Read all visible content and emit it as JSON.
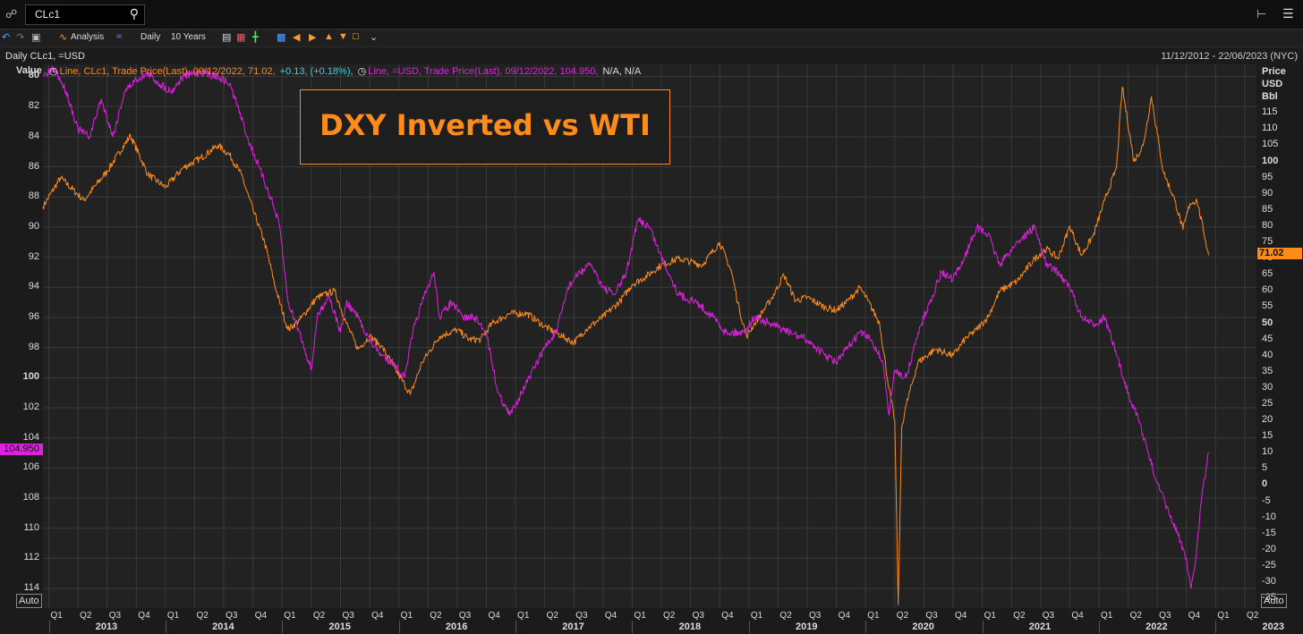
{
  "topbar": {
    "ric_value": "CLc1"
  },
  "toolbar": {
    "analysis_label": "Analysis",
    "interval_label": "Daily",
    "range_label": "10 Years"
  },
  "infobar": {
    "chart_name": "Daily CLc1, =USD",
    "date_range": "11/12/2012 - 22/06/2023 (NYC)"
  },
  "legend": {
    "wti_text": "Line, CLc1, Trade Price(Last), 09/12/2022, 71.02,",
    "wti_change": "+0.13, (+0.18%),",
    "dxy_text": "Line, =USD, Trade Price(Last), 09/12/2022, 104.950,",
    "dxy_na": "N/A, N/A"
  },
  "title": "DXY Inverted vs WTI",
  "axes": {
    "left_title": "Value",
    "right_title": [
      "Price",
      "USD",
      "Bbl"
    ],
    "auto_label": "Auto",
    "dxy_last_tag": "104.950",
    "wti_last_tag": "71.02"
  },
  "colors": {
    "wti": "#ff8c1a",
    "dxy": "#e020e0",
    "grid": "#3a3a3a"
  },
  "chart_data": {
    "type": "line",
    "title": "DXY Inverted vs WTI",
    "x_quarters": [
      "Q1",
      "Q2",
      "Q3",
      "Q4",
      "Q1",
      "Q2",
      "Q3",
      "Q4",
      "Q1",
      "Q2",
      "Q3",
      "Q4",
      "Q1",
      "Q2",
      "Q3",
      "Q4",
      "Q1",
      "Q2",
      "Q3",
      "Q4",
      "Q1",
      "Q2",
      "Q3",
      "Q4",
      "Q1",
      "Q2",
      "Q3",
      "Q4",
      "Q1",
      "Q2",
      "Q3",
      "Q4",
      "Q1",
      "Q2",
      "Q3",
      "Q4",
      "Q1",
      "Q2",
      "Q3",
      "Q4",
      "Q1",
      "Q2"
    ],
    "x_years": [
      "2013",
      "2014",
      "2015",
      "2016",
      "2017",
      "2018",
      "2019",
      "2020",
      "2021",
      "2022",
      "2023"
    ],
    "left_axis": {
      "label": "Value",
      "inverted": true,
      "ylim": [
        79.2,
        115.3
      ],
      "ticks": [
        80,
        82,
        84,
        86,
        88,
        90,
        92,
        94,
        96,
        98,
        100,
        102,
        104,
        106,
        108,
        110,
        112,
        114
      ]
    },
    "right_axis": {
      "label": "Price USD Bbl",
      "ylim": [
        -38,
        130
      ],
      "ticks": [
        115,
        110,
        105,
        100,
        95,
        90,
        85,
        80,
        75,
        70,
        65,
        60,
        55,
        50,
        45,
        40,
        35,
        30,
        25,
        20,
        15,
        10,
        5,
        0,
        -5,
        -10,
        -15,
        -20,
        -25,
        -30,
        -35
      ]
    },
    "series": [
      {
        "name": "CLc1",
        "axis": "right",
        "color": "#ff8c1a",
        "points": [
          [
            2012.95,
            86
          ],
          [
            2013.1,
            95
          ],
          [
            2013.3,
            88
          ],
          [
            2013.5,
            97
          ],
          [
            2013.7,
            108
          ],
          [
            2013.85,
            96
          ],
          [
            2014.0,
            92
          ],
          [
            2014.15,
            98
          ],
          [
            2014.3,
            101
          ],
          [
            2014.45,
            105
          ],
          [
            2014.55,
            102
          ],
          [
            2014.65,
            96
          ],
          [
            2014.75,
            85
          ],
          [
            2014.85,
            75
          ],
          [
            2014.95,
            60
          ],
          [
            2015.05,
            48
          ],
          [
            2015.15,
            51
          ],
          [
            2015.3,
            58
          ],
          [
            2015.45,
            60
          ],
          [
            2015.55,
            50
          ],
          [
            2015.65,
            42
          ],
          [
            2015.75,
            46
          ],
          [
            2015.85,
            43
          ],
          [
            2015.95,
            37
          ],
          [
            2016.05,
            31
          ],
          [
            2016.1,
            28
          ],
          [
            2016.2,
            38
          ],
          [
            2016.35,
            46
          ],
          [
            2016.5,
            48
          ],
          [
            2016.6,
            45
          ],
          [
            2016.7,
            45
          ],
          [
            2016.8,
            50
          ],
          [
            2016.95,
            53
          ],
          [
            2017.1,
            53
          ],
          [
            2017.25,
            49
          ],
          [
            2017.4,
            46
          ],
          [
            2017.5,
            44
          ],
          [
            2017.6,
            48
          ],
          [
            2017.75,
            52
          ],
          [
            2017.9,
            57
          ],
          [
            2018.0,
            62
          ],
          [
            2018.1,
            64
          ],
          [
            2018.25,
            68
          ],
          [
            2018.4,
            70
          ],
          [
            2018.5,
            69
          ],
          [
            2018.6,
            68
          ],
          [
            2018.75,
            75
          ],
          [
            2018.85,
            66
          ],
          [
            2018.92,
            54
          ],
          [
            2018.98,
            46
          ],
          [
            2019.05,
            50
          ],
          [
            2019.2,
            58
          ],
          [
            2019.3,
            65
          ],
          [
            2019.4,
            57
          ],
          [
            2019.5,
            58
          ],
          [
            2019.65,
            55
          ],
          [
            2019.75,
            54
          ],
          [
            2019.85,
            57
          ],
          [
            2019.95,
            61
          ],
          [
            2020.02,
            57
          ],
          [
            2020.12,
            50
          ],
          [
            2020.2,
            30
          ],
          [
            2020.25,
            20
          ],
          [
            2020.28,
            -37
          ],
          [
            2020.31,
            18
          ],
          [
            2020.35,
            25
          ],
          [
            2020.45,
            38
          ],
          [
            2020.6,
            42
          ],
          [
            2020.75,
            40
          ],
          [
            2020.85,
            45
          ],
          [
            2020.95,
            48
          ],
          [
            2021.05,
            52
          ],
          [
            2021.15,
            60
          ],
          [
            2021.3,
            63
          ],
          [
            2021.45,
            70
          ],
          [
            2021.55,
            73
          ],
          [
            2021.65,
            70
          ],
          [
            2021.75,
            80
          ],
          [
            2021.85,
            71
          ],
          [
            2021.95,
            77
          ],
          [
            2022.05,
            88
          ],
          [
            2022.15,
            98
          ],
          [
            2022.2,
            123
          ],
          [
            2022.3,
            100
          ],
          [
            2022.38,
            105
          ],
          [
            2022.45,
            120
          ],
          [
            2022.55,
            97
          ],
          [
            2022.65,
            88
          ],
          [
            2022.72,
            79
          ],
          [
            2022.78,
            87
          ],
          [
            2022.84,
            88
          ],
          [
            2022.9,
            78
          ],
          [
            2022.94,
            71
          ]
        ]
      },
      {
        "name": "=USD",
        "axis": "left",
        "color": "#e020e0",
        "points": [
          [
            2012.95,
            80
          ],
          [
            2013.05,
            79.5
          ],
          [
            2013.15,
            81
          ],
          [
            2013.25,
            83.5
          ],
          [
            2013.35,
            84
          ],
          [
            2013.45,
            81.5
          ],
          [
            2013.55,
            84
          ],
          [
            2013.65,
            81
          ],
          [
            2013.75,
            80.2
          ],
          [
            2013.85,
            79.8
          ],
          [
            2013.95,
            80.5
          ],
          [
            2014.05,
            81
          ],
          [
            2014.15,
            80
          ],
          [
            2014.3,
            79.7
          ],
          [
            2014.45,
            80
          ],
          [
            2014.55,
            80.5
          ],
          [
            2014.62,
            82
          ],
          [
            2014.7,
            84
          ],
          [
            2014.8,
            86
          ],
          [
            2014.9,
            88
          ],
          [
            2014.98,
            90
          ],
          [
            2015.05,
            95
          ],
          [
            2015.15,
            97
          ],
          [
            2015.25,
            99.5
          ],
          [
            2015.3,
            96
          ],
          [
            2015.4,
            94.5
          ],
          [
            2015.5,
            97
          ],
          [
            2015.55,
            95
          ],
          [
            2015.65,
            96
          ],
          [
            2015.75,
            97.5
          ],
          [
            2015.85,
            98.5
          ],
          [
            2015.95,
            99
          ],
          [
            2016.05,
            100
          ],
          [
            2016.12,
            97
          ],
          [
            2016.2,
            95
          ],
          [
            2016.3,
            93
          ],
          [
            2016.35,
            96
          ],
          [
            2016.45,
            95
          ],
          [
            2016.55,
            96
          ],
          [
            2016.65,
            96
          ],
          [
            2016.75,
            97
          ],
          [
            2016.85,
            101
          ],
          [
            2016.95,
            102.5
          ],
          [
            2017.05,
            101
          ],
          [
            2017.12,
            100
          ],
          [
            2017.25,
            98
          ],
          [
            2017.35,
            97
          ],
          [
            2017.45,
            94
          ],
          [
            2017.55,
            93
          ],
          [
            2017.65,
            92.5
          ],
          [
            2017.75,
            94
          ],
          [
            2017.85,
            94.5
          ],
          [
            2017.95,
            93
          ],
          [
            2018.05,
            89.5
          ],
          [
            2018.15,
            90
          ],
          [
            2018.25,
            92
          ],
          [
            2018.4,
            94.5
          ],
          [
            2018.55,
            95
          ],
          [
            2018.7,
            96
          ],
          [
            2018.8,
            97
          ],
          [
            2018.95,
            97
          ],
          [
            2019.05,
            96
          ],
          [
            2019.2,
            96.5
          ],
          [
            2019.35,
            97
          ],
          [
            2019.5,
            97.5
          ],
          [
            2019.65,
            98.5
          ],
          [
            2019.75,
            99
          ],
          [
            2019.85,
            98
          ],
          [
            2019.95,
            97
          ],
          [
            2020.05,
            97.5
          ],
          [
            2020.15,
            99
          ],
          [
            2020.2,
            102.5
          ],
          [
            2020.25,
            99.5
          ],
          [
            2020.35,
            100
          ],
          [
            2020.45,
            97
          ],
          [
            2020.55,
            95
          ],
          [
            2020.65,
            93
          ],
          [
            2020.75,
            93.5
          ],
          [
            2020.85,
            92
          ],
          [
            2020.95,
            90
          ],
          [
            2021.05,
            90.5
          ],
          [
            2021.15,
            92.5
          ],
          [
            2021.3,
            91
          ],
          [
            2021.45,
            90
          ],
          [
            2021.55,
            92.5
          ],
          [
            2021.65,
            93
          ],
          [
            2021.75,
            94
          ],
          [
            2021.85,
            96
          ],
          [
            2021.95,
            96.5
          ],
          [
            2022.05,
            96
          ],
          [
            2022.15,
            98.5
          ],
          [
            2022.25,
            101
          ],
          [
            2022.35,
            103
          ],
          [
            2022.42,
            105
          ],
          [
            2022.5,
            107
          ],
          [
            2022.6,
            109
          ],
          [
            2022.68,
            110.5
          ],
          [
            2022.75,
            112
          ],
          [
            2022.79,
            114
          ],
          [
            2022.83,
            112
          ],
          [
            2022.88,
            108
          ],
          [
            2022.92,
            106
          ],
          [
            2022.94,
            104.95
          ]
        ]
      }
    ]
  }
}
